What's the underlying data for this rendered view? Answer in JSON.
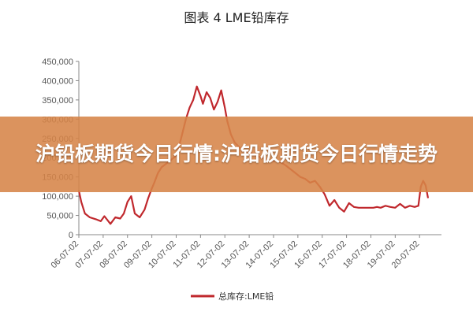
{
  "chart_data": {
    "type": "line",
    "title": "图表 4   LME铅库存",
    "xlabel": "",
    "ylabel": "",
    "ylim": [
      0,
      450000
    ],
    "y_ticks": [
      "0",
      "50,000",
      "100,000",
      "150,000",
      "200,000",
      "250,000",
      "300,000",
      "350,000",
      "400,000",
      "450,000"
    ],
    "x_ticks": [
      "06-07-02",
      "07-07-02",
      "08-07-02",
      "09-07-02",
      "10-07-02",
      "11-07-02",
      "12-07-02",
      "13-07-02",
      "14-07-02",
      "15-07-02",
      "16-07-02",
      "17-07-02",
      "18-07-02",
      "19-07-02",
      "20-07-02"
    ],
    "grid": false,
    "legend_position": "bottom",
    "series": [
      {
        "name": "总库存:LME铅",
        "color": "#c0282d",
        "x": [
          0.0,
          0.1,
          0.25,
          0.45,
          0.7,
          0.9,
          1.05,
          1.3,
          1.5,
          1.7,
          1.85,
          2.0,
          2.15,
          2.3,
          2.5,
          2.7,
          2.85,
          3.0,
          3.1,
          3.25,
          3.4,
          3.6,
          3.8,
          4.0,
          4.2,
          4.4,
          4.55,
          4.7,
          4.85,
          5.0,
          5.1,
          5.25,
          5.4,
          5.55,
          5.7,
          5.85,
          6.0,
          6.1,
          6.25,
          6.4,
          6.55,
          6.7,
          6.85,
          7.0,
          7.15,
          7.3,
          7.5,
          7.7,
          7.9,
          8.1,
          8.3,
          8.5,
          8.7,
          8.9,
          9.1,
          9.3,
          9.5,
          9.7,
          9.9,
          10.1,
          10.3,
          10.5,
          10.7,
          10.9,
          11.1,
          11.3,
          11.5,
          11.7,
          11.9,
          12.1,
          12.25,
          12.4,
          12.6,
          12.8,
          13.0,
          13.2,
          13.4,
          13.6,
          13.8,
          13.95,
          14.05,
          14.15,
          14.25,
          14.35
        ],
        "values": [
          115000,
          85000,
          55000,
          45000,
          40000,
          35000,
          48000,
          28000,
          45000,
          42000,
          55000,
          85000,
          100000,
          55000,
          45000,
          65000,
          95000,
          120000,
          135000,
          160000,
          175000,
          185000,
          195000,
          205000,
          250000,
          300000,
          330000,
          350000,
          385000,
          360000,
          340000,
          370000,
          355000,
          325000,
          345000,
          375000,
          330000,
          295000,
          260000,
          240000,
          230000,
          220000,
          215000,
          215000,
          210000,
          205000,
          200000,
          195000,
          190000,
          192000,
          188000,
          180000,
          170000,
          160000,
          150000,
          145000,
          135000,
          140000,
          125000,
          105000,
          75000,
          90000,
          70000,
          60000,
          82000,
          72000,
          70000,
          70000,
          70000,
          70000,
          72000,
          70000,
          75000,
          72000,
          70000,
          80000,
          70000,
          75000,
          72000,
          75000,
          125000,
          140000,
          128000,
          95000
        ]
      }
    ]
  },
  "banner": {
    "text": "沪铅板期货今日行情:沪铅板期货今日行情走势"
  }
}
